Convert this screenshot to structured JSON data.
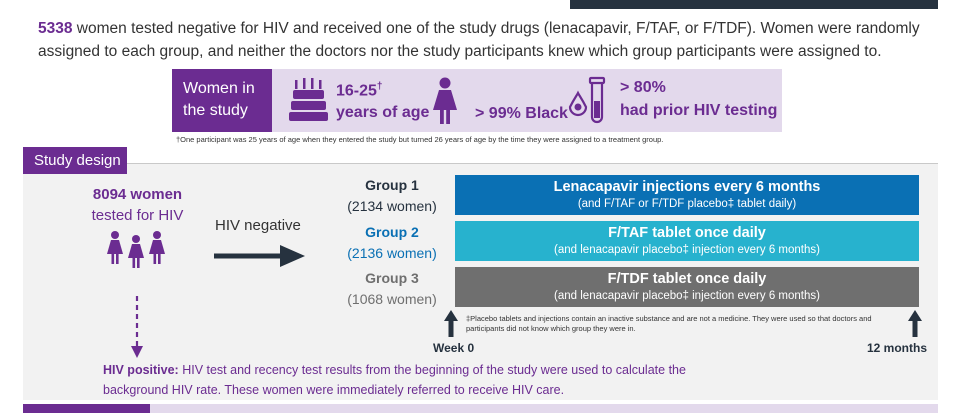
{
  "intro": {
    "number": "5338",
    "text": " women tested negative for HIV and received one of the study drugs (lenacapavir, F/TAF, or F/TDF). Women were randomly assigned to each group, and neither the doctors nor the study participants knew which group participants were assigned to."
  },
  "women_in_study": {
    "label_line1": "Women in",
    "label_line2": "the study",
    "age_line1": "16-25",
    "age_dagger": "†",
    "age_line2": "years of age",
    "race": "> 99% Black",
    "testing_line1": "> 80%",
    "testing_line2": "had prior HIV testing",
    "icons": [
      "birthday-cake-icon",
      "woman-icon",
      "test-tube-icon"
    ],
    "footnote": "†One participant was 25 years of age when they entered the study but turned 26 years of age by the time they were assigned to a treatment group."
  },
  "study_design": {
    "label": "Study design",
    "tested_number": "8094 women",
    "tested_text": "tested for HIV",
    "hiv_negative": "HIV negative",
    "groups": [
      {
        "name": "Group 1",
        "count": "(2134 women)",
        "treatment": "Lenacapavir injections every 6 months",
        "detail": "(and F/TAF or F/TDF placebo‡ tablet daily)",
        "color": "#0a70b4"
      },
      {
        "name": "Group 2",
        "count": "(2136 women)",
        "treatment": "F/TAF tablet once daily",
        "detail": "(and lenacapavir placebo‡ injection every 6 months)",
        "color": "#27b2ce"
      },
      {
        "name": "Group 3",
        "count": "(1068 women)",
        "treatment": "F/TDF tablet once daily",
        "detail": "(and lenacapavir placebo‡ injection every 6 months)",
        "color": "#6f6f6f"
      }
    ],
    "placebo_footnote": "‡Placebo tablets and injections contain an inactive substance and are not a medicine. They were used so that doctors and participants did not know which group they were in.",
    "week0": "Week 0",
    "month12": "12 months",
    "hiv_positive_label": "HIV positive:",
    "hiv_positive_text": " HIV test and recency test results from the beginning of the study were used to calculate the background HIV rate. These women were immediately referred to receive HIV care."
  },
  "colors": {
    "purple": "#6b2c91",
    "light_purple": "#e3d9ec",
    "navy": "#26323f",
    "blue": "#0a70b4",
    "teal": "#27b2ce",
    "gray": "#6f6f6f"
  }
}
